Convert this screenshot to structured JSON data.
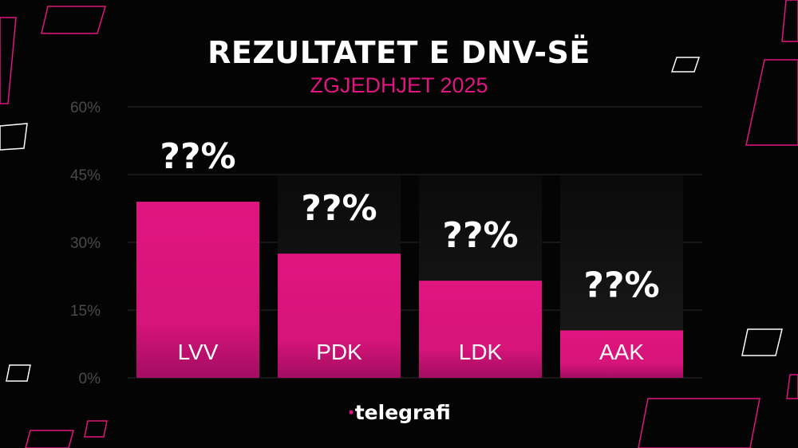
{
  "header": {
    "title": "REZULTATET E DNV-SË",
    "subtitle": "ZGJEDHJET 2025"
  },
  "brand": {
    "name": "telegrafi"
  },
  "colors": {
    "background": "#040404",
    "bar": "#e0157f",
    "bar_fade": "#b00f68",
    "grid": "#2a2a2a",
    "track": "#1a1a1a",
    "tick_text": "#4a4a4a",
    "deco_outline": "#ffffff",
    "deco_accent": "#e0157f"
  },
  "chart_data": {
    "type": "bar",
    "title": "REZULTATET E DNV-SË",
    "subtitle": "ZGJEDHJET 2025",
    "categories": [
      "LVV",
      "PDK",
      "LDK",
      "AAK"
    ],
    "values": [
      39,
      27.5,
      21.5,
      10.5
    ],
    "data_labels": [
      "??%",
      "??%",
      "??%",
      "??%"
    ],
    "ylim": [
      0,
      60
    ],
    "yticks": [
      0,
      15,
      30,
      45,
      60
    ],
    "ytick_labels": [
      "0%",
      "15%",
      "30%",
      "45%",
      "60%"
    ],
    "xlabel": "",
    "ylabel": "",
    "grid": true,
    "legend": "none"
  }
}
